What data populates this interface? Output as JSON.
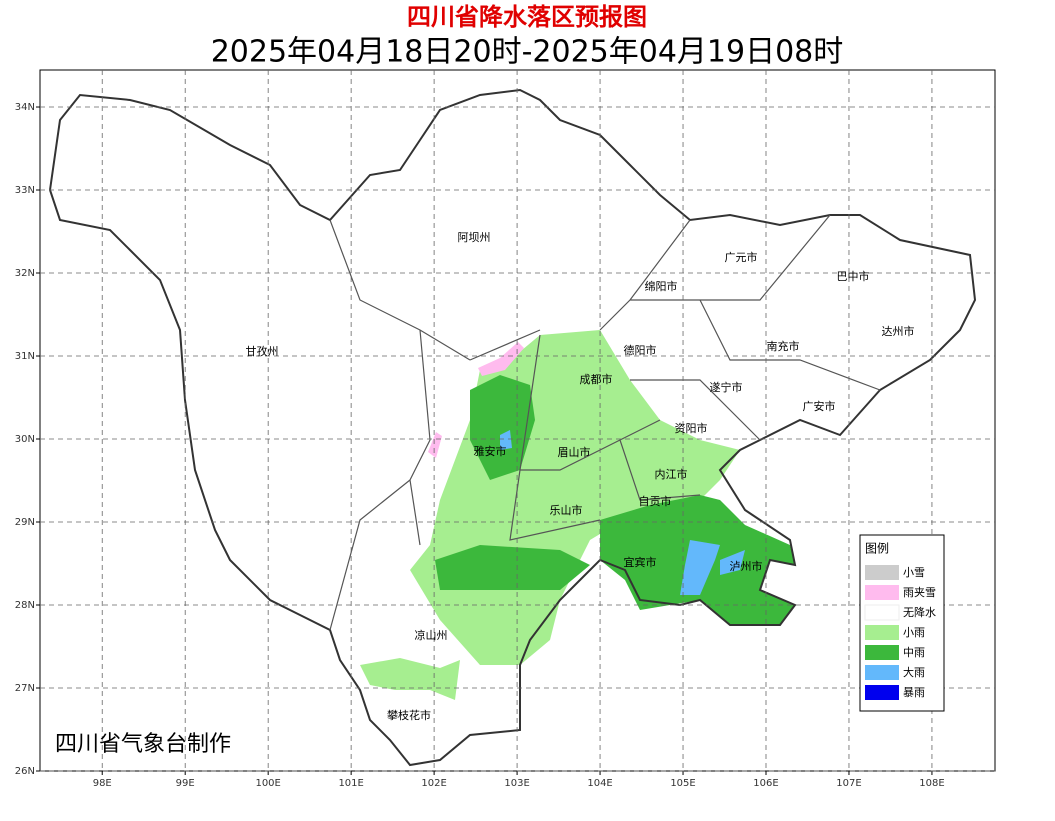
{
  "header": {
    "title": "四川省降水落区预报图",
    "subtitle": "2025年04月18日20时-2025年04月19日08时"
  },
  "map": {
    "xlim": [
      97.25,
      108.76
    ],
    "ylim": [
      26,
      34.446
    ],
    "xticks": [
      {
        "value": 98,
        "label": "98E"
      },
      {
        "value": 99,
        "label": "99E"
      },
      {
        "value": 100,
        "label": "100E"
      },
      {
        "value": 101,
        "label": "101E"
      },
      {
        "value": 102,
        "label": "102E"
      },
      {
        "value": 103,
        "label": "103E"
      },
      {
        "value": 104,
        "label": "104E"
      },
      {
        "value": 105,
        "label": "105E"
      },
      {
        "value": 106,
        "label": "106E"
      },
      {
        "value": 107,
        "label": "107E"
      },
      {
        "value": 108,
        "label": "108E"
      }
    ],
    "yticks": [
      {
        "value": 26,
        "label": "26N"
      },
      {
        "value": 27,
        "label": "27N"
      },
      {
        "value": 28,
        "label": "28N"
      },
      {
        "value": 29,
        "label": "29N"
      },
      {
        "value": 30,
        "label": "30N"
      },
      {
        "value": 31,
        "label": "31N"
      },
      {
        "value": 32,
        "label": "32N"
      },
      {
        "value": 33,
        "label": "33N"
      },
      {
        "value": 34,
        "label": "34N"
      }
    ],
    "cities": [
      "阿坝州",
      "甘孜州",
      "广元市",
      "巴中市",
      "绵阳市",
      "德阳市",
      "南充市",
      "达州市",
      "成都市",
      "遂宁市",
      "广安市",
      "资阳市",
      "雅安市",
      "眉山市",
      "内江市",
      "自贡市",
      "乐山市",
      "宜宾市",
      "泸州市",
      "凉山州",
      "攀枝花市"
    ],
    "credit": "四川省气象台制作"
  },
  "legend": {
    "title": "图例",
    "items": [
      {
        "label": "小雪",
        "color": "#cccccc"
      },
      {
        "label": "雨夹雪",
        "color": "#ffbbee"
      },
      {
        "label": "无降水",
        "color": "#ffffff"
      },
      {
        "label": "小雨",
        "color": "#a6ee90"
      },
      {
        "label": "中雨",
        "color": "#3cb83c"
      },
      {
        "label": "大雨",
        "color": "#63b8fb"
      },
      {
        "label": "暴雨",
        "color": "#0000ee"
      }
    ]
  }
}
